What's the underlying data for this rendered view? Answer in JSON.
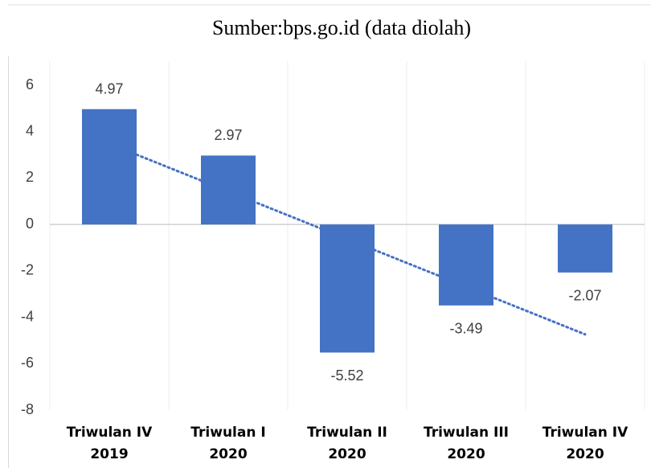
{
  "chart_data": {
    "type": "bar",
    "title": "Sumber:bps.go.id (data diolah)",
    "categories": [
      [
        "Triwulan IV",
        "2019"
      ],
      [
        "Triwulan I",
        "2020"
      ],
      [
        "Triwulan II",
        "2020"
      ],
      [
        "Triwulan III",
        "2020"
      ],
      [
        "Triwulan IV",
        "2020"
      ]
    ],
    "values": [
      4.97,
      2.97,
      -5.52,
      -3.49,
      -2.07
    ],
    "color": "#4472c4",
    "ylim": [
      -8,
      6
    ],
    "yticks": [
      6,
      4,
      2,
      0,
      -2,
      -4,
      -6,
      -8
    ],
    "trendline": "linear",
    "trendline_color": "#4472c4",
    "grid": true
  }
}
